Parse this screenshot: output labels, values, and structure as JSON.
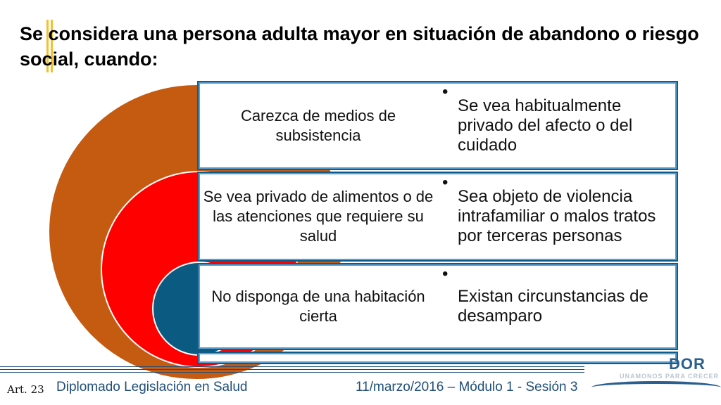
{
  "slide": {
    "title": "Se considera una persona adulta mayor en situación de abandono o riesgo social, cuando:",
    "rows": [
      {
        "left": "Carezca de medios de subsistencia",
        "right": "Se vea habitualmente privado del afecto o del cuidado"
      },
      {
        "left": "Se vea privado de alimentos o de las atenciones que requiere su salud",
        "right": "Sea objeto de violencia intrafamiliar o malos tratos por terceras personas"
      },
      {
        "left": "No disponga de una habitación cierta",
        "right": "Existan circunstancias de desamparo"
      }
    ],
    "bullet": "•"
  },
  "footer": {
    "article": "Art. 23",
    "course": "Diplomado Legislación en Salud",
    "date_session": "11/marzo/2016 – Módulo 1 - Sesión 3"
  },
  "logo": {
    "text": "DOR",
    "tagline": "UNAMONOS PARA CRECER"
  },
  "colors": {
    "outer_arc": "#c55a11",
    "middle_arc": "#ff0000",
    "inner_arc": "#0b5a82",
    "row_border": "#0f5c8a",
    "accent": "#f2c12e",
    "footer_text": "#1f4e79"
  }
}
